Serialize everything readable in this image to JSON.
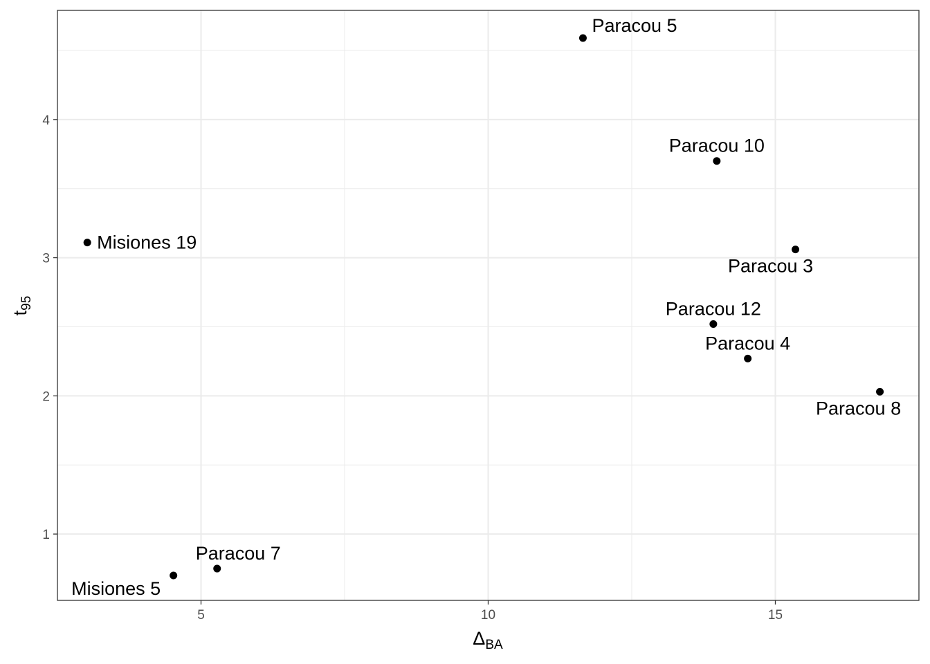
{
  "chart_data": {
    "type": "scatter",
    "title": "",
    "xlabel": {
      "main": "Δ",
      "sub": "BA"
    },
    "ylabel": {
      "main": "t",
      "sub": "95"
    },
    "xlim": [
      2.5,
      17.5
    ],
    "ylim": [
      0.52,
      4.79
    ],
    "x_ticks": [
      5,
      10,
      15
    ],
    "y_ticks": [
      1,
      2,
      3,
      4
    ],
    "x_tick_labels": [
      "5",
      "10",
      "15"
    ],
    "y_tick_labels": [
      "1",
      "2",
      "3",
      "4"
    ],
    "grid": true,
    "legend": "none",
    "point_color": "#000000",
    "points": [
      {
        "label": "Paracou 5",
        "x": 11.65,
        "y": 4.59,
        "label_pos": "upper-right"
      },
      {
        "label": "Paracou 10",
        "x": 13.98,
        "y": 3.7,
        "label_pos": "above"
      },
      {
        "label": "Misiones 19",
        "x": 3.02,
        "y": 3.11,
        "label_pos": "right"
      },
      {
        "label": "Paracou 3",
        "x": 15.35,
        "y": 3.06,
        "label_pos": "below-left"
      },
      {
        "label": "Paracou 12",
        "x": 13.92,
        "y": 2.52,
        "label_pos": "above"
      },
      {
        "label": "Paracou 4",
        "x": 14.52,
        "y": 2.27,
        "label_pos": "above"
      },
      {
        "label": "Paracou 8",
        "x": 16.82,
        "y": 2.03,
        "label_pos": "below"
      },
      {
        "label": "Paracou 7",
        "x": 5.28,
        "y": 0.75,
        "label_pos": "above-right"
      },
      {
        "label": "Misiones 5",
        "x": 4.52,
        "y": 0.7,
        "label_pos": "below-left"
      }
    ]
  }
}
